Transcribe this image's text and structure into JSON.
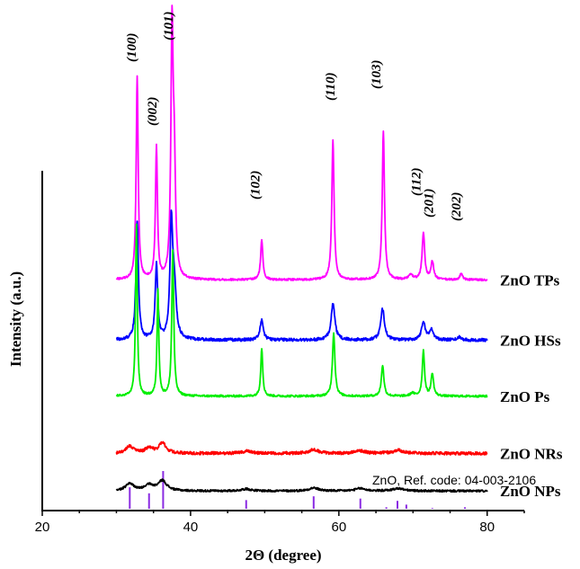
{
  "chart_data": {
    "type": "line",
    "title": "",
    "xlabel": "2Θ (degree)",
    "ylabel": "Intensity (a.u.)",
    "xlim": [
      20,
      85
    ],
    "x_ticks": [
      "20",
      "40",
      "60",
      "80"
    ],
    "grid": false,
    "legend": "series labels at right end of each trace",
    "reference": {
      "label": "ZnO, Ref. code: 04-003-2106",
      "color": "#8A2BE2",
      "sticks": [
        {
          "x": 31.8,
          "h": 0.57
        },
        {
          "x": 34.4,
          "h": 0.41
        },
        {
          "x": 36.3,
          "h": 1.0
        },
        {
          "x": 47.5,
          "h": 0.23
        },
        {
          "x": 56.6,
          "h": 0.33
        },
        {
          "x": 62.9,
          "h": 0.27
        },
        {
          "x": 66.4,
          "h": 0.04
        },
        {
          "x": 67.9,
          "h": 0.21
        },
        {
          "x": 69.1,
          "h": 0.11
        },
        {
          "x": 72.6,
          "h": 0.02
        },
        {
          "x": 77.0,
          "h": 0.04
        }
      ]
    },
    "miller_indices": [
      {
        "label": "(100)",
        "x": 32.6
      },
      {
        "label": "(002)",
        "x": 35.4
      },
      {
        "label": "(101)",
        "x": 37.6
      },
      {
        "label": "(102)",
        "x": 49.3
      },
      {
        "label": "(110)",
        "x": 59.4
      },
      {
        "label": "(103)",
        "x": 65.6
      },
      {
        "label": "(112)",
        "x": 71.0
      },
      {
        "label": "(201)",
        "x": 72.7
      },
      {
        "label": "(202)",
        "x": 76.4
      }
    ],
    "series": [
      {
        "name": "ZnO TPs",
        "color": "#FF00FF",
        "baseline": 0.46,
        "noise": 0.002,
        "peaks": [
          {
            "x": 32.8,
            "h": 0.405,
            "w": 0.16
          },
          {
            "x": 35.4,
            "h": 0.263,
            "w": 0.16
          },
          {
            "x": 37.5,
            "h": 0.485,
            "w": 0.18
          },
          {
            "x": 37.8,
            "h": 0.2,
            "w": 0.2
          },
          {
            "x": 49.6,
            "h": 0.079,
            "w": 0.18
          },
          {
            "x": 59.2,
            "h": 0.279,
            "w": 0.18
          },
          {
            "x": 66.0,
            "h": 0.295,
            "w": 0.18
          },
          {
            "x": 69.7,
            "h": 0.01,
            "w": 0.3
          },
          {
            "x": 71.4,
            "h": 0.094,
            "w": 0.2
          },
          {
            "x": 72.6,
            "h": 0.036,
            "w": 0.22
          },
          {
            "x": 76.5,
            "h": 0.013,
            "w": 0.2
          }
        ]
      },
      {
        "name": "ZnO HSs",
        "color": "#0000FF",
        "baseline": 0.34,
        "noise": 0.003,
        "peaks": [
          {
            "x": 32.8,
            "h": 0.236,
            "w": 0.2
          },
          {
            "x": 35.4,
            "h": 0.148,
            "w": 0.2
          },
          {
            "x": 37.4,
            "h": 0.218,
            "w": 0.22
          },
          {
            "x": 37.8,
            "h": 0.1,
            "w": 0.3
          },
          {
            "x": 49.6,
            "h": 0.041,
            "w": 0.25
          },
          {
            "x": 59.2,
            "h": 0.073,
            "w": 0.3
          },
          {
            "x": 65.9,
            "h": 0.062,
            "w": 0.3
          },
          {
            "x": 71.4,
            "h": 0.036,
            "w": 0.3
          },
          {
            "x": 72.5,
            "h": 0.021,
            "w": 0.3
          },
          {
            "x": 76.3,
            "h": 0.006,
            "w": 0.3
          }
        ]
      },
      {
        "name": "ZnO Ps",
        "color": "#00EE00",
        "baseline": 0.228,
        "noise": 0.002,
        "peaks": [
          {
            "x": 32.7,
            "h": 0.342,
            "w": 0.14
          },
          {
            "x": 35.6,
            "h": 0.213,
            "w": 0.14
          },
          {
            "x": 37.6,
            "h": 0.29,
            "w": 0.16
          },
          {
            "x": 49.6,
            "h": 0.096,
            "w": 0.16
          },
          {
            "x": 59.3,
            "h": 0.126,
            "w": 0.2
          },
          {
            "x": 65.9,
            "h": 0.062,
            "w": 0.2
          },
          {
            "x": 71.4,
            "h": 0.091,
            "w": 0.18
          },
          {
            "x": 72.6,
            "h": 0.045,
            "w": 0.2
          },
          {
            "x": 69.9,
            "h": 0.006,
            "w": 0.3
          }
        ]
      },
      {
        "name": "ZnO NRs",
        "color": "#FF0000",
        "baseline": 0.114,
        "noise": 0.003,
        "peaks": [
          {
            "x": 31.8,
            "h": 0.014,
            "w": 0.6
          },
          {
            "x": 34.4,
            "h": 0.011,
            "w": 0.6
          },
          {
            "x": 36.2,
            "h": 0.02,
            "w": 0.6
          },
          {
            "x": 47.5,
            "h": 0.004,
            "w": 0.8
          },
          {
            "x": 56.6,
            "h": 0.007,
            "w": 0.8
          },
          {
            "x": 62.9,
            "h": 0.005,
            "w": 0.8
          },
          {
            "x": 68.0,
            "h": 0.006,
            "w": 0.9
          }
        ]
      },
      {
        "name": "ZnO NPs",
        "color": "#000000",
        "baseline": 0.039,
        "noise": 0.002,
        "peaks": [
          {
            "x": 31.8,
            "h": 0.014,
            "w": 0.7
          },
          {
            "x": 34.4,
            "h": 0.011,
            "w": 0.7
          },
          {
            "x": 36.2,
            "h": 0.02,
            "w": 0.7
          },
          {
            "x": 47.5,
            "h": 0.004,
            "w": 0.8
          },
          {
            "x": 56.6,
            "h": 0.006,
            "w": 0.8
          },
          {
            "x": 62.9,
            "h": 0.005,
            "w": 0.8
          },
          {
            "x": 68.0,
            "h": 0.005,
            "w": 0.9
          }
        ]
      }
    ]
  }
}
